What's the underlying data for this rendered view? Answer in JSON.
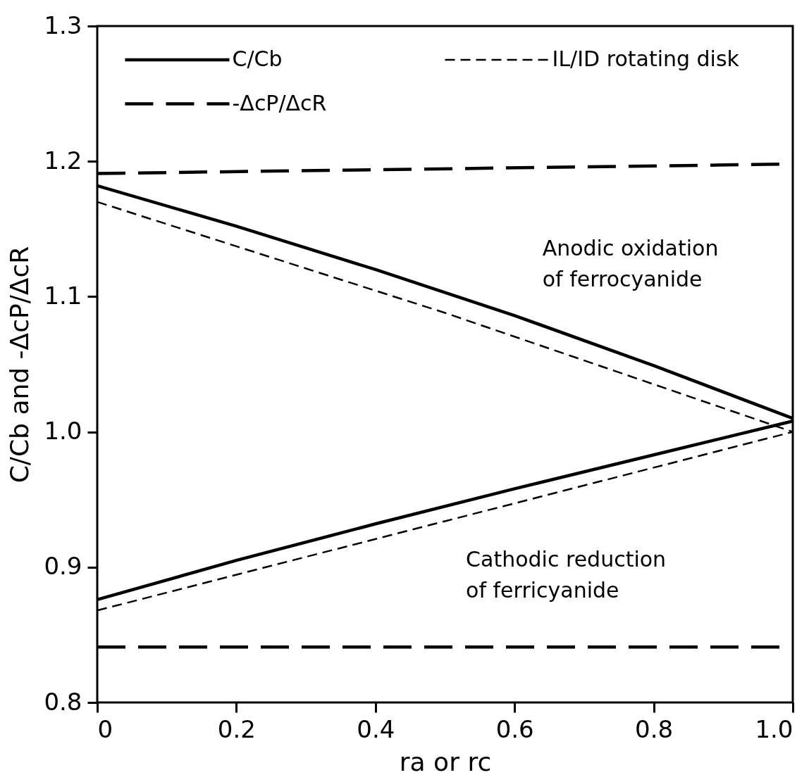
{
  "chart_data": {
    "type": "line",
    "xlabel": "ra or rc",
    "ylabel": "C/Cb and -ΔcP/ΔcR",
    "xlim": [
      0,
      1
    ],
    "ylim": [
      0.8,
      1.3
    ],
    "xticks": [
      0,
      0.2,
      0.4,
      0.6,
      0.8,
      {
        "value": 1,
        "label": "1.0"
      }
    ],
    "yticks": [
      0.8,
      0.9,
      {
        "value": 1,
        "label": "1.0"
      },
      1.1,
      1.2,
      1.3
    ],
    "grid": false,
    "legend": "top left",
    "marker": "none",
    "annotations": [
      "Anodic oxidation\nof ferrocyanide",
      "Cathodic reduction\nof ferricyanide"
    ],
    "series": [
      {
        "name": "C/Cb",
        "color": "#000000",
        "line_style": "solid",
        "x": [
          0,
          0.2,
          0.4,
          0.6,
          0.8,
          1.0
        ],
        "values": [
          1.182,
          1.152,
          1.12,
          1.086,
          1.049,
          1.01
        ]
      },
      {
        "name": "IL/ID rotating disk",
        "color": "#000000",
        "line_style": "dashed",
        "x": [
          0,
          0.5,
          1.0
        ],
        "values": [
          1.17,
          1.088,
          1.0
        ]
      },
      {
        "name": "-ΔcP/ΔcR",
        "color": "#000000",
        "line_style": "dashed",
        "x": [
          0,
          1.0
        ],
        "values": [
          1.191,
          1.198
        ]
      },
      {
        "color": "#000000",
        "line_style": "solid",
        "x": [
          0,
          0.2,
          0.4,
          0.6,
          0.8,
          1.0
        ],
        "values": [
          0.876,
          0.905,
          0.932,
          0.958,
          0.983,
          1.008
        ]
      },
      {
        "color": "#000000",
        "line_style": "dashed",
        "x": [
          0,
          0.5,
          1.0
        ],
        "values": [
          0.868,
          0.934,
          1.0
        ]
      },
      {
        "color": "#000000",
        "line_style": "dashed",
        "x": [
          0,
          1.0
        ],
        "values": [
          0.841,
          0.841
        ]
      }
    ]
  }
}
